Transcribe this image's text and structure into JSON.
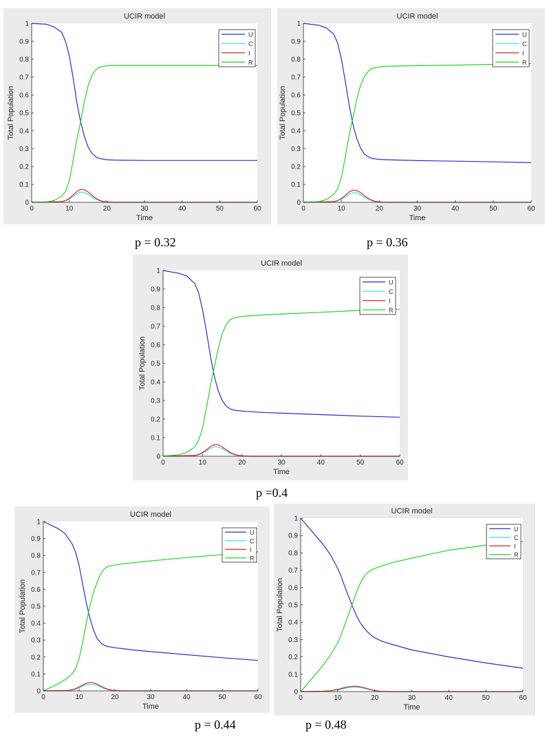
{
  "chart_data": [
    {
      "type": "line",
      "title": "UCIR model",
      "xlabel": "Time",
      "ylabel": "Total Population",
      "xlim": [
        0,
        60
      ],
      "ylim": [
        0,
        1
      ],
      "xticks": [
        "0",
        "10",
        "20",
        "30",
        "40",
        "50",
        "60"
      ],
      "yticks": [
        "0",
        "0.1",
        "0.2",
        "0.3",
        "0.4",
        "0.5",
        "0.6",
        "0.7",
        "0.8",
        "0.9",
        "1"
      ],
      "grid": false,
      "legend": "top-right",
      "caption": "p = 0.32",
      "colors": {
        "U": "#2b2bd6",
        "C": "#3fe0e0",
        "I": "#e02020",
        "R": "#20d820"
      },
      "series": [
        {
          "name": "U",
          "x": [
            0,
            4,
            6,
            8,
            9,
            10,
            11,
            12,
            13,
            14,
            15,
            16,
            17,
            18,
            20,
            22,
            25,
            30,
            40,
            50,
            60
          ],
          "y": [
            1.0,
            0.995,
            0.98,
            0.95,
            0.9,
            0.82,
            0.7,
            0.56,
            0.45,
            0.37,
            0.31,
            0.275,
            0.255,
            0.245,
            0.238,
            0.236,
            0.235,
            0.234,
            0.234,
            0.234,
            0.234
          ]
        },
        {
          "name": "C",
          "x": [
            0,
            8,
            9,
            10,
            11,
            12,
            13,
            14,
            15,
            16,
            17,
            18,
            19,
            20,
            22,
            60
          ],
          "y": [
            0,
            0.003,
            0.008,
            0.018,
            0.032,
            0.047,
            0.057,
            0.055,
            0.045,
            0.03,
            0.018,
            0.009,
            0.004,
            0.001,
            0,
            0
          ]
        },
        {
          "name": "I",
          "x": [
            0,
            8,
            9,
            10,
            11,
            12,
            13,
            14,
            15,
            16,
            17,
            18,
            19,
            20,
            22,
            60
          ],
          "y": [
            0,
            0.004,
            0.01,
            0.022,
            0.04,
            0.06,
            0.072,
            0.07,
            0.058,
            0.04,
            0.024,
            0.012,
            0.005,
            0.002,
            0,
            0
          ]
        },
        {
          "name": "R",
          "x": [
            0,
            4,
            6,
            8,
            9,
            10,
            11,
            12,
            13,
            14,
            15,
            16,
            17,
            18,
            20,
            22,
            25,
            30,
            40,
            50,
            60
          ],
          "y": [
            0,
            0.002,
            0.01,
            0.035,
            0.06,
            0.12,
            0.23,
            0.35,
            0.45,
            0.56,
            0.65,
            0.71,
            0.74,
            0.755,
            0.763,
            0.765,
            0.765,
            0.765,
            0.765,
            0.765,
            0.765
          ]
        }
      ]
    },
    {
      "type": "line",
      "title": "UCIR model",
      "xlabel": "Time",
      "ylabel": "Total Population",
      "xlim": [
        0,
        60
      ],
      "ylim": [
        0,
        1
      ],
      "xticks": [
        "0",
        "10",
        "20",
        "30",
        "40",
        "50",
        "60"
      ],
      "yticks": [
        "0",
        "0.1",
        "0.2",
        "0.3",
        "0.4",
        "0.5",
        "0.6",
        "0.7",
        "0.8",
        "0.9",
        "1"
      ],
      "grid": false,
      "legend": "top-right",
      "caption": "p = 0.36",
      "colors": {
        "U": "#2b2bd6",
        "C": "#3fe0e0",
        "I": "#e02020",
        "R": "#20d820"
      },
      "series": [
        {
          "name": "U",
          "x": [
            0,
            4,
            6,
            8,
            9,
            10,
            11,
            12,
            13,
            14,
            15,
            16,
            17,
            18,
            20,
            22,
            25,
            30,
            40,
            50,
            60
          ],
          "y": [
            1.0,
            0.99,
            0.975,
            0.94,
            0.89,
            0.8,
            0.68,
            0.55,
            0.44,
            0.36,
            0.305,
            0.27,
            0.255,
            0.245,
            0.24,
            0.238,
            0.236,
            0.233,
            0.23,
            0.226,
            0.222
          ]
        },
        {
          "name": "C",
          "x": [
            0,
            8,
            9,
            10,
            11,
            12,
            13,
            14,
            15,
            16,
            17,
            18,
            19,
            20,
            22,
            60
          ],
          "y": [
            0,
            0.003,
            0.008,
            0.017,
            0.03,
            0.044,
            0.054,
            0.052,
            0.043,
            0.029,
            0.017,
            0.009,
            0.004,
            0.001,
            0,
            0
          ]
        },
        {
          "name": "I",
          "x": [
            0,
            8,
            9,
            10,
            11,
            12,
            13,
            14,
            15,
            16,
            17,
            18,
            19,
            20,
            22,
            60
          ],
          "y": [
            0,
            0.004,
            0.01,
            0.021,
            0.038,
            0.057,
            0.068,
            0.066,
            0.055,
            0.038,
            0.023,
            0.012,
            0.005,
            0.002,
            0,
            0
          ]
        },
        {
          "name": "R",
          "x": [
            0,
            4,
            6,
            8,
            9,
            10,
            11,
            12,
            13,
            14,
            15,
            16,
            17,
            18,
            20,
            22,
            25,
            30,
            40,
            50,
            60
          ],
          "y": [
            0,
            0.004,
            0.015,
            0.045,
            0.075,
            0.14,
            0.25,
            0.37,
            0.47,
            0.57,
            0.65,
            0.7,
            0.73,
            0.748,
            0.757,
            0.76,
            0.762,
            0.764,
            0.767,
            0.771,
            0.775
          ]
        }
      ]
    },
    {
      "type": "line",
      "title": "UCIR model",
      "xlabel": "Time",
      "ylabel": "Total Population",
      "xlim": [
        0,
        60
      ],
      "ylim": [
        0,
        1
      ],
      "xticks": [
        "0",
        "10",
        "20",
        "30",
        "40",
        "50",
        "60"
      ],
      "yticks": [
        "0",
        "0.1",
        "0.2",
        "0.3",
        "0.4",
        "0.5",
        "0.6",
        "0.7",
        "0.8",
        "0.9",
        "1"
      ],
      "grid": false,
      "legend": "top-right",
      "caption": "p =0.4",
      "colors": {
        "U": "#2b2bd6",
        "C": "#3fe0e0",
        "I": "#e02020",
        "R": "#20d820"
      },
      "series": [
        {
          "name": "U",
          "x": [
            0,
            4,
            6,
            8,
            9,
            10,
            11,
            12,
            13,
            14,
            15,
            16,
            17,
            18,
            20,
            22,
            25,
            30,
            40,
            50,
            60
          ],
          "y": [
            1.0,
            0.985,
            0.97,
            0.93,
            0.88,
            0.79,
            0.67,
            0.54,
            0.43,
            0.35,
            0.3,
            0.27,
            0.255,
            0.248,
            0.243,
            0.24,
            0.236,
            0.232,
            0.224,
            0.216,
            0.21
          ]
        },
        {
          "name": "C",
          "x": [
            0,
            8,
            9,
            10,
            11,
            12,
            13,
            14,
            15,
            16,
            17,
            18,
            19,
            20,
            22,
            60
          ],
          "y": [
            0,
            0.003,
            0.008,
            0.016,
            0.028,
            0.042,
            0.051,
            0.049,
            0.041,
            0.028,
            0.016,
            0.008,
            0.004,
            0.001,
            0,
            0
          ]
        },
        {
          "name": "I",
          "x": [
            0,
            8,
            9,
            10,
            11,
            12,
            13,
            14,
            15,
            16,
            17,
            18,
            19,
            20,
            22,
            60
          ],
          "y": [
            0,
            0.004,
            0.01,
            0.02,
            0.035,
            0.052,
            0.063,
            0.061,
            0.05,
            0.035,
            0.021,
            0.011,
            0.005,
            0.002,
            0,
            0
          ]
        },
        {
          "name": "R",
          "x": [
            0,
            4,
            6,
            8,
            9,
            10,
            11,
            12,
            13,
            14,
            15,
            16,
            17,
            18,
            20,
            22,
            25,
            30,
            40,
            50,
            60
          ],
          "y": [
            0,
            0.008,
            0.02,
            0.05,
            0.085,
            0.15,
            0.26,
            0.38,
            0.48,
            0.58,
            0.66,
            0.71,
            0.735,
            0.745,
            0.752,
            0.756,
            0.76,
            0.765,
            0.775,
            0.785,
            0.792
          ]
        }
      ]
    },
    {
      "type": "line",
      "title": "UCIR model",
      "xlabel": "Time",
      "ylabel": "Total Population",
      "xlim": [
        0,
        60
      ],
      "ylim": [
        0,
        1
      ],
      "xticks": [
        "0",
        "10",
        "20",
        "30",
        "40",
        "50",
        "60"
      ],
      "yticks": [
        "0",
        "0.1",
        "0.2",
        "0.3",
        "0.4",
        "0.5",
        "0.6",
        "0.7",
        "0.8",
        "0.9",
        "1"
      ],
      "grid": false,
      "legend": "top-right",
      "caption": "p = 0.44",
      "colors": {
        "U": "#2b2bd6",
        "C": "#3fe0e0",
        "I": "#e02020",
        "R": "#20d820"
      },
      "series": [
        {
          "name": "U",
          "x": [
            0,
            2,
            4,
            6,
            8,
            9,
            10,
            11,
            12,
            13,
            14,
            15,
            16,
            17,
            18,
            20,
            22,
            25,
            30,
            40,
            50,
            60
          ],
          "y": [
            1.0,
            0.98,
            0.96,
            0.93,
            0.87,
            0.82,
            0.74,
            0.63,
            0.52,
            0.43,
            0.36,
            0.31,
            0.285,
            0.27,
            0.262,
            0.255,
            0.25,
            0.242,
            0.232,
            0.214,
            0.196,
            0.18
          ]
        },
        {
          "name": "C",
          "x": [
            0,
            7,
            8,
            9,
            10,
            11,
            12,
            13,
            14,
            15,
            16,
            17,
            18,
            19,
            20,
            22,
            60
          ],
          "y": [
            0,
            0.002,
            0.005,
            0.01,
            0.018,
            0.028,
            0.036,
            0.04,
            0.038,
            0.032,
            0.023,
            0.014,
            0.008,
            0.004,
            0.001,
            0,
            0
          ]
        },
        {
          "name": "I",
          "x": [
            0,
            7,
            8,
            9,
            10,
            11,
            12,
            13,
            14,
            15,
            16,
            17,
            18,
            19,
            20,
            22,
            60
          ],
          "y": [
            0,
            0.003,
            0.007,
            0.013,
            0.023,
            0.035,
            0.045,
            0.05,
            0.048,
            0.04,
            0.029,
            0.018,
            0.01,
            0.005,
            0.002,
            0,
            0
          ]
        },
        {
          "name": "R",
          "x": [
            0,
            2,
            4,
            6,
            8,
            9,
            10,
            11,
            12,
            13,
            14,
            15,
            16,
            17,
            18,
            20,
            22,
            25,
            30,
            40,
            50,
            60
          ],
          "y": [
            0,
            0.02,
            0.04,
            0.065,
            0.1,
            0.13,
            0.19,
            0.29,
            0.4,
            0.5,
            0.58,
            0.64,
            0.69,
            0.72,
            0.735,
            0.743,
            0.75,
            0.757,
            0.768,
            0.788,
            0.805,
            0.822
          ]
        }
      ]
    },
    {
      "type": "line",
      "title": "UCIR model",
      "xlabel": "Time",
      "ylabel": "Total Population",
      "xlim": [
        0,
        60
      ],
      "ylim": [
        0,
        1
      ],
      "xticks": [
        "0",
        "10",
        "20",
        "30",
        "40",
        "50",
        "60"
      ],
      "yticks": [
        "0",
        "0.1",
        "0.2",
        "0.3",
        "0.4",
        "0.5",
        "0.6",
        "0.7",
        "0.8",
        "0.9",
        "1"
      ],
      "grid": false,
      "legend": "top-right",
      "caption": "p = 0.48",
      "colors": {
        "U": "#2b2bd6",
        "C": "#3fe0e0",
        "I": "#e02020",
        "R": "#20d820"
      },
      "series": [
        {
          "name": "U",
          "x": [
            0,
            2,
            4,
            6,
            8,
            10,
            11,
            12,
            13,
            14,
            15,
            16,
            17,
            18,
            19,
            20,
            22,
            25,
            30,
            40,
            50,
            60
          ],
          "y": [
            1.0,
            0.95,
            0.9,
            0.85,
            0.79,
            0.71,
            0.66,
            0.6,
            0.545,
            0.49,
            0.44,
            0.4,
            0.37,
            0.345,
            0.325,
            0.31,
            0.29,
            0.27,
            0.24,
            0.2,
            0.165,
            0.135
          ]
        },
        {
          "name": "C",
          "x": [
            0,
            6,
            8,
            10,
            11,
            12,
            13,
            14,
            15,
            16,
            17,
            18,
            19,
            20,
            21,
            22,
            24,
            60
          ],
          "y": [
            0,
            0.001,
            0.004,
            0.01,
            0.014,
            0.019,
            0.023,
            0.025,
            0.025,
            0.023,
            0.019,
            0.014,
            0.009,
            0.005,
            0.002,
            0.001,
            0,
            0
          ]
        },
        {
          "name": "I",
          "x": [
            0,
            6,
            8,
            10,
            11,
            12,
            13,
            14,
            15,
            16,
            17,
            18,
            19,
            20,
            21,
            22,
            24,
            60
          ],
          "y": [
            0,
            0.002,
            0.005,
            0.013,
            0.018,
            0.024,
            0.028,
            0.03,
            0.03,
            0.028,
            0.023,
            0.017,
            0.011,
            0.006,
            0.003,
            0.001,
            0,
            0
          ]
        },
        {
          "name": "R",
          "x": [
            0,
            2,
            4,
            6,
            8,
            10,
            11,
            12,
            13,
            14,
            15,
            16,
            17,
            18,
            19,
            20,
            22,
            25,
            30,
            40,
            50,
            60
          ],
          "y": [
            0,
            0.05,
            0.1,
            0.15,
            0.21,
            0.28,
            0.33,
            0.39,
            0.45,
            0.51,
            0.57,
            0.62,
            0.66,
            0.685,
            0.7,
            0.71,
            0.725,
            0.745,
            0.77,
            0.815,
            0.845,
            0.865
          ]
        }
      ]
    }
  ]
}
